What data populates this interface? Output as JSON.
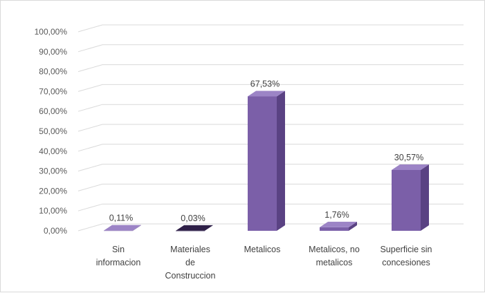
{
  "chart_data": {
    "type": "bar",
    "style": "3d-column",
    "categories": [
      [
        "Sin",
        "informacion"
      ],
      [
        "Materiales",
        "de",
        "Construccion"
      ],
      [
        "Metalicos"
      ],
      [
        "Metalicos, no",
        "metalicos"
      ],
      [
        "Superficie sin",
        "concesiones"
      ]
    ],
    "values": [
      0.11,
      0.03,
      67.53,
      1.76,
      30.57
    ],
    "data_labels": [
      "0,11%",
      "0,03%",
      "67,53%",
      "1,76%",
      "30,57%"
    ],
    "y_ticks": [
      "0,00%",
      "10,00%",
      "20,00%",
      "30,00%",
      "40,00%",
      "50,00%",
      "60,00%",
      "70,00%",
      "80,00%",
      "90,00%",
      "100,00%"
    ],
    "ylim": [
      0,
      100
    ],
    "grid": true,
    "legend": "none",
    "title": "",
    "xlabel": "",
    "ylabel": "",
    "colors": {
      "bar_front": "#7b5fa8",
      "bar_side": "#5a4283",
      "bar_top": "#9c84c6",
      "bar_dark_front": "#3d2a5c",
      "grid": "#d9d9d9"
    }
  }
}
